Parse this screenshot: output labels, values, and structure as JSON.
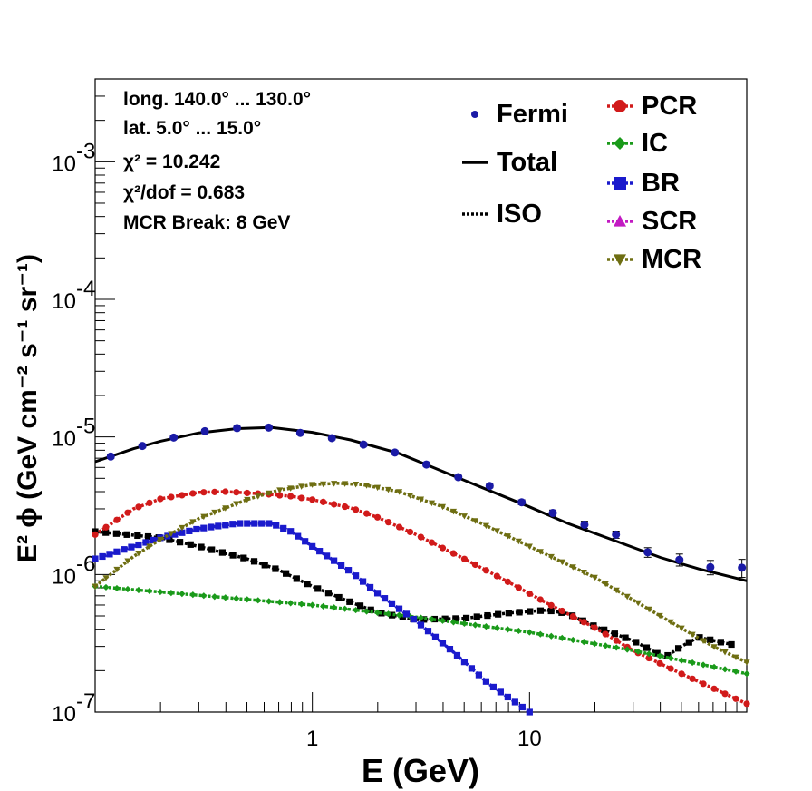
{
  "chart_data": {
    "type": "line",
    "xlabel": "E (GeV)",
    "ylabel": "E² ϕ (GeV cm⁻² s⁻¹ sr⁻¹)",
    "xscale": "log",
    "yscale": "log",
    "xlim": [
      0.1,
      100
    ],
    "ylim": [
      1e-07,
      0.004
    ],
    "x_tick_labels": [
      {
        "value": 1,
        "label": "1"
      },
      {
        "value": 10,
        "label": "10"
      }
    ],
    "y_tick_labels": [
      {
        "value": 1e-07,
        "mantissa": "10",
        "exp": "-7"
      },
      {
        "value": 1e-06,
        "mantissa": "10",
        "exp": "-6"
      },
      {
        "value": 1e-05,
        "mantissa": "10",
        "exp": "-5"
      },
      {
        "value": 0.0001,
        "mantissa": "10",
        "exp": "-4"
      },
      {
        "value": 0.001,
        "mantissa": "10",
        "exp": "-3"
      }
    ],
    "annotations": [
      "long. 140.0° ... 130.0°",
      "lat. 5.0° ... 15.0°",
      "χ² = 10.242",
      "χ²/dof = 0.683",
      "MCR Break:  8 GeV"
    ],
    "grid": false,
    "legend_placement": "top-right",
    "fermi": {
      "name": "Fermi",
      "color": "#1a1aa6",
      "x": [
        0.118,
        0.165,
        0.23,
        0.32,
        0.45,
        0.63,
        0.88,
        1.23,
        1.72,
        2.4,
        3.35,
        4.7,
        6.55,
        9.2,
        12.8,
        17.9,
        25,
        35,
        49,
        68,
        95
      ],
      "y": [
        7.2e-06,
        8.6e-06,
        9.9e-06,
        1.1e-05,
        1.16e-05,
        1.17e-05,
        1.07e-05,
        9.8e-06,
        8.8e-06,
        7.7e-06,
        6.3e-06,
        5.1e-06,
        4.4e-06,
        3.35e-06,
        2.8e-06,
        2.3e-06,
        1.95e-06,
        1.45e-06,
        1.28e-06,
        1.13e-06,
        1.12e-06
      ],
      "yerr": [
        0.03,
        0.03,
        0.03,
        0.03,
        0.03,
        0.03,
        0.03,
        0.03,
        0.03,
        0.03,
        0.03,
        0.03,
        0.03,
        0.04,
        0.05,
        0.06,
        0.06,
        0.08,
        0.1,
        0.12,
        0.15
      ]
    },
    "series": [
      {
        "name": "Total",
        "color": "#000000",
        "style": "solid",
        "marker": "none",
        "x": [
          0.1,
          0.15,
          0.2,
          0.3,
          0.45,
          0.65,
          1.0,
          1.5,
          2.5,
          4,
          6,
          10,
          15,
          25,
          40,
          60,
          100
        ],
        "y": [
          6.6e-06,
          8.2e-06,
          9.3e-06,
          1.07e-05,
          1.15e-05,
          1.17e-05,
          1.08e-05,
          9.5e-06,
          7.6e-06,
          5.6e-06,
          4.3e-06,
          3.1e-06,
          2.35e-06,
          1.75e-06,
          1.33e-06,
          1.1e-06,
          9e-07
        ]
      },
      {
        "name": "ISO",
        "color": "#000000",
        "style": "dotted",
        "marker": "square",
        "x": [
          0.1,
          0.2,
          0.3,
          0.5,
          0.7,
          1.0,
          1.5,
          2.0,
          3.0,
          5,
          8,
          12,
          15,
          20,
          30,
          42,
          50,
          60,
          85
        ],
        "y": [
          2.05e-06,
          1.85e-06,
          1.6e-06,
          1.3e-06,
          1.08e-06,
          8.2e-07,
          6.3e-07,
          5.3e-07,
          4.7e-07,
          4.8e-07,
          5.25e-07,
          5.5e-07,
          5.2e-07,
          4.2e-07,
          3.3e-07,
          2.5e-07,
          3e-07,
          3.5e-07,
          3.1e-07
        ]
      },
      {
        "name": "PCR",
        "color": "#d11a1a",
        "style": "dotted",
        "marker": "circle",
        "x": [
          0.1,
          0.15,
          0.2,
          0.3,
          0.4,
          0.6,
          0.8,
          1.0,
          1.5,
          2.0,
          3,
          5,
          8,
          12,
          20,
          30,
          50,
          100
        ],
        "y": [
          1.95e-06,
          3e-06,
          3.55e-06,
          3.95e-06,
          4e-06,
          3.85e-06,
          3.7e-06,
          3.5e-06,
          3.05e-06,
          2.6e-06,
          1.95e-06,
          1.3e-06,
          8.8e-07,
          6.2e-07,
          4.1e-07,
          2.8e-07,
          1.9e-07,
          1.15e-07
        ]
      },
      {
        "name": "IC",
        "color": "#1a9a1a",
        "style": "dotted",
        "marker": "diamond",
        "x": [
          0.1,
          1,
          3,
          10,
          30,
          100
        ],
        "y": [
          8.2e-07,
          6e-07,
          4.9e-07,
          3.8e-07,
          2.8e-07,
          1.9e-07
        ]
      },
      {
        "name": "BR",
        "color": "#1a1acc",
        "style": "dotted",
        "marker": "square",
        "x": [
          0.1,
          0.15,
          0.2,
          0.3,
          0.45,
          0.65,
          0.8,
          1.0,
          1.5,
          2.0,
          3.0,
          4.5,
          6.5,
          10
        ],
        "y": [
          1.3e-06,
          1.6e-06,
          1.85e-06,
          2.15e-06,
          2.35e-06,
          2.35e-06,
          2.05e-06,
          1.6e-06,
          1.05e-06,
          7.3e-07,
          4.6e-07,
          2.7e-07,
          1.6e-07,
          1e-07
        ]
      },
      {
        "name": "SCR",
        "color": "#c21ac2",
        "style": "dotted",
        "marker": "triangle-up",
        "x": [],
        "y": []
      },
      {
        "name": "MCR",
        "color": "#6e6e12",
        "style": "dotted",
        "marker": "triangle-down",
        "x": [
          0.1,
          0.15,
          0.2,
          0.3,
          0.5,
          0.7,
          1.0,
          1.3,
          1.7,
          2.5,
          4,
          6,
          10,
          20,
          40,
          70,
          100
        ],
        "y": [
          8.2e-07,
          1.35e-06,
          1.8e-06,
          2.55e-06,
          3.5e-06,
          4.1e-06,
          4.5e-06,
          4.6e-06,
          4.5e-06,
          4e-06,
          3.1e-06,
          2.35e-06,
          1.6e-06,
          9.5e-07,
          5e-07,
          3e-07,
          2.3e-07
        ]
      }
    ]
  }
}
